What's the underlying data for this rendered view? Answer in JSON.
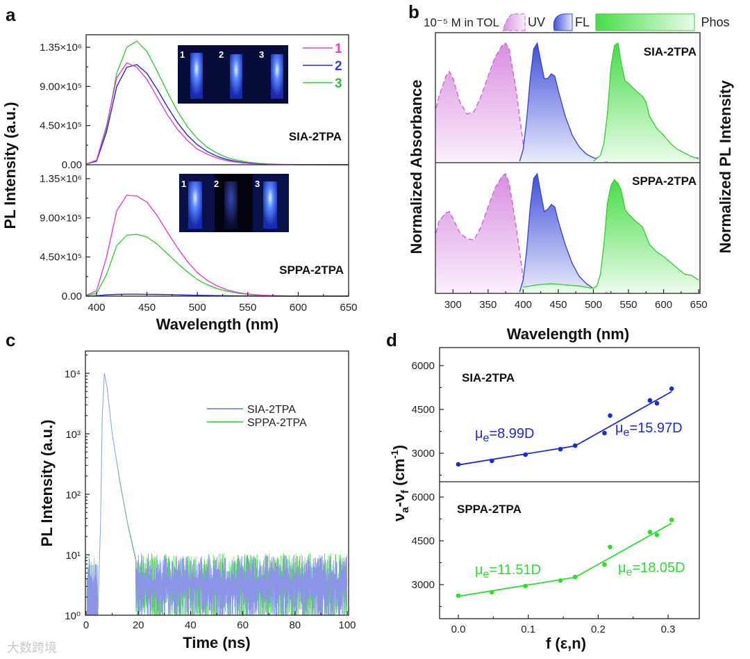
{
  "watermark": "大数跨境",
  "chart_data": [
    {
      "panel": "a",
      "type": "line",
      "xlabel": "Wavelength (nm)",
      "ylabel": "PL Intensity (a.u.)",
      "xlim": [
        390,
        650
      ],
      "ylim_x1e6": [
        0,
        1.5
      ],
      "x_ticks": [
        "400",
        "450",
        "500",
        "550",
        "600",
        "650"
      ],
      "y_ticks": [
        "0.00",
        "4.50×10⁵",
        "9.00×10⁵",
        "1.35×10⁶"
      ],
      "y_tick_values_x1e6": [
        0,
        0.45,
        0.9,
        1.35
      ],
      "legend": [
        "1",
        "2",
        "3"
      ],
      "colors": {
        "1": "#e040d0",
        "2": "#2828c8",
        "3": "#30d030"
      },
      "x": [
        390,
        400,
        410,
        420,
        430,
        440,
        450,
        460,
        470,
        480,
        490,
        500,
        510,
        520,
        530,
        540,
        550,
        560,
        570,
        580,
        600,
        650
      ],
      "subplots": [
        {
          "title": "SIA-2TPA",
          "inset_labels": [
            "1",
            "2",
            "3"
          ],
          "series": [
            {
              "name": "1",
              "values_x1e6": [
                0.01,
                0.05,
                0.45,
                1.0,
                1.17,
                1.12,
                0.98,
                0.78,
                0.58,
                0.41,
                0.28,
                0.18,
                0.12,
                0.075,
                0.045,
                0.028,
                0.016,
                0.009,
                0.005,
                0.003,
                0.001,
                0
              ]
            },
            {
              "name": "2",
              "values_x1e6": [
                0.01,
                0.04,
                0.38,
                0.9,
                1.12,
                1.15,
                1.05,
                0.87,
                0.67,
                0.49,
                0.34,
                0.23,
                0.15,
                0.095,
                0.058,
                0.035,
                0.02,
                0.011,
                0.006,
                0.003,
                0.001,
                0
              ]
            },
            {
              "name": "3",
              "values_x1e6": [
                0.01,
                0.05,
                0.42,
                1.05,
                1.35,
                1.42,
                1.3,
                1.08,
                0.84,
                0.62,
                0.44,
                0.3,
                0.2,
                0.13,
                0.08,
                0.05,
                0.03,
                0.017,
                0.009,
                0.005,
                0.002,
                0
              ]
            }
          ]
        },
        {
          "title": "SPPA-2TPA",
          "inset_labels": [
            "1",
            "2",
            "3"
          ],
          "series": [
            {
              "name": "1",
              "values_x1e6": [
                0.01,
                0.06,
                0.45,
                0.98,
                1.16,
                1.15,
                1.08,
                0.93,
                0.74,
                0.56,
                0.4,
                0.27,
                0.18,
                0.115,
                0.07,
                0.042,
                0.025,
                0.014,
                0.008,
                0.004,
                0.001,
                0
              ]
            },
            {
              "name": "2",
              "values_x1e6": [
                0,
                0.005,
                0.015,
                0.02,
                0.022,
                0.022,
                0.021,
                0.02,
                0.018,
                0.015,
                0.012,
                0.01,
                0.008,
                0.006,
                0.004,
                0.003,
                0.002,
                0.001,
                0.001,
                0,
                0,
                0
              ]
            },
            {
              "name": "3",
              "values_x1e6": [
                0.01,
                0.03,
                0.25,
                0.58,
                0.7,
                0.71,
                0.68,
                0.6,
                0.49,
                0.38,
                0.28,
                0.19,
                0.13,
                0.085,
                0.055,
                0.034,
                0.02,
                0.012,
                0.007,
                0.004,
                0.001,
                0
              ]
            }
          ]
        }
      ]
    },
    {
      "panel": "b",
      "type": "area",
      "header": "10⁻⁵ M in TOL",
      "legend": [
        "UV",
        "FL",
        "Phos"
      ],
      "colors": {
        "UV": "#d060d8",
        "FL": "#3a48d0",
        "Phos": "#38d038"
      },
      "xlabel": "Wavelength (nm)",
      "ylabel_left": "Normalized Absorbance",
      "ylabel_right": "Normalized PL Intensity",
      "xlim": [
        275,
        650
      ],
      "ylim": [
        0,
        1.05
      ],
      "x_ticks": [
        "300",
        "350",
        "400",
        "450",
        "500",
        "550",
        "600",
        "650"
      ],
      "subplots": [
        {
          "title": "SIA-2TPA",
          "UV": {
            "x": [
              276,
              280,
              290,
              295,
              300,
              310,
              320,
              330,
              340,
              350,
              360,
              370,
              375,
              380,
              390,
              400,
              410,
              450,
              500,
              550,
              600,
              650
            ],
            "y": [
              0.45,
              0.55,
              0.72,
              0.76,
              0.7,
              0.5,
              0.4,
              0.42,
              0.55,
              0.72,
              0.88,
              0.98,
              1.0,
              0.95,
              0.6,
              0.15,
              0.05,
              0.03,
              0.03,
              0.03,
              0.03,
              0.03
            ]
          },
          "FL": {
            "x": [
              395,
              400,
              405,
              410,
              415,
              420,
              425,
              430,
              435,
              440,
              445,
              450,
              460,
              470,
              480,
              490,
              500,
              510,
              520
            ],
            "y": [
              0,
              0.1,
              0.35,
              0.7,
              0.95,
              1.0,
              0.85,
              0.7,
              0.7,
              0.74,
              0.72,
              0.6,
              0.38,
              0.22,
              0.12,
              0.06,
              0.03,
              0.01,
              0
            ]
          },
          "Phos": {
            "x": [
              500,
              510,
              515,
              520,
              525,
              530,
              535,
              540,
              545,
              550,
              560,
              570,
              575,
              580,
              590,
              600,
              610,
              620,
              630,
              640,
              650
            ],
            "y": [
              0,
              0.05,
              0.15,
              0.4,
              0.8,
              0.98,
              1.0,
              0.82,
              0.68,
              0.66,
              0.6,
              0.55,
              0.5,
              0.38,
              0.28,
              0.22,
              0.15,
              0.1,
              0.07,
              0.04,
              0.02
            ]
          }
        },
        {
          "title": "SPPA-2TPA",
          "UV": {
            "x": [
              276,
              280,
              290,
              295,
              300,
              310,
              320,
              330,
              340,
              350,
              360,
              370,
              375,
              380,
              390,
              400,
              410,
              450,
              500,
              550,
              600,
              650
            ],
            "y": [
              0.5,
              0.6,
              0.67,
              0.68,
              0.62,
              0.5,
              0.45,
              0.44,
              0.55,
              0.72,
              0.88,
              0.98,
              1.0,
              0.92,
              0.55,
              0.12,
              0.04,
              0.03,
              0.03,
              0.03,
              0.03,
              0.03
            ]
          },
          "FL": {
            "x": [
              395,
              400,
              405,
              410,
              415,
              420,
              425,
              430,
              435,
              440,
              445,
              450,
              460,
              470,
              480,
              490,
              500,
              510,
              520
            ],
            "y": [
              0,
              0.1,
              0.35,
              0.72,
              0.96,
              1.0,
              0.84,
              0.68,
              0.7,
              0.74,
              0.72,
              0.6,
              0.4,
              0.24,
              0.13,
              0.07,
              0.03,
              0.01,
              0
            ]
          },
          "Phos": {
            "x": [
              400,
              420,
              440,
              460,
              480,
              500,
              505,
              510,
              515,
              520,
              525,
              530,
              535,
              540,
              545,
              550,
              560,
              570,
              580,
              590,
              600,
              610,
              620,
              630,
              640,
              650
            ],
            "y": [
              0.04,
              0.06,
              0.07,
              0.06,
              0.05,
              0.03,
              0.05,
              0.15,
              0.4,
              0.75,
              0.9,
              0.95,
              0.92,
              0.85,
              0.7,
              0.66,
              0.6,
              0.55,
              0.4,
              0.34,
              0.3,
              0.25,
              0.2,
              0.15,
              0.14,
              0.1
            ]
          }
        }
      ]
    },
    {
      "panel": "c",
      "type": "line",
      "xlabel": "Time (ns)",
      "ylabel": "PL Intensity (a.u.)",
      "xlim": [
        0,
        100
      ],
      "ylim_log10": [
        0,
        4.3
      ],
      "x_ticks": [
        "0",
        "20",
        "40",
        "60",
        "80",
        "100"
      ],
      "y_ticks": [
        "10⁰",
        "10¹",
        "10²",
        "10³",
        "10⁴"
      ],
      "colors": {
        "SIA-2TPA": "#8c94e8",
        "SPPA-2TPA": "#50e050"
      },
      "series": [
        {
          "name": "SIA-2TPA",
          "decay": [
            [
              4.5,
              1
            ],
            [
              5.5,
              30
            ],
            [
              6.2,
              2000
            ],
            [
              7,
              10000
            ],
            [
              8,
              6000
            ],
            [
              10,
              1000
            ],
            [
              13,
              150
            ],
            [
              16,
              30
            ],
            [
              19,
              8
            ]
          ],
          "noise_floor": [
            1,
            10
          ]
        },
        {
          "name": "SPPA-2TPA",
          "decay": [
            [
              4.5,
              1
            ],
            [
              5.5,
              30
            ],
            [
              6.2,
              2000
            ],
            [
              7,
              10000
            ],
            [
              8,
              6000
            ],
            [
              10,
              1000
            ],
            [
              13,
              160
            ],
            [
              16,
              32
            ],
            [
              19,
              9
            ]
          ],
          "noise_floor": [
            1,
            12
          ]
        }
      ]
    },
    {
      "panel": "d",
      "type": "scatter",
      "xlabel": "f (ε,n)",
      "ylabel": {
        "nu1": "ν",
        "sub1": "a",
        "nu2": "-ν",
        "sub2": "f",
        "unit": " (cm",
        "sup": "-1",
        "close": ")"
      },
      "xlim": [
        -0.02,
        0.345
      ],
      "x_ticks": [
        "0.0",
        "0.1",
        "0.2",
        "0.3"
      ],
      "y_ticks": [
        "3000",
        "4500",
        "6000"
      ],
      "subplots": [
        {
          "title": "SIA-2TPA",
          "color": "#1a2ad8",
          "f": [
            0.0,
            0.048,
            0.096,
            0.146,
            0.167,
            0.209,
            0.217,
            0.274,
            0.284,
            0.305
          ],
          "stokes_shift": [
            2620,
            2740,
            2950,
            3140,
            3260,
            3690,
            4290,
            4810,
            4710,
            5210
          ],
          "fits": [
            {
              "range": [
                0,
                0.167
              ],
              "y": [
                2600,
                3250
              ],
              "mu": "μ",
              "sub": "e",
              "label": "=8.99D"
            },
            {
              "range": [
                0.167,
                0.305
              ],
              "y": [
                3250,
                5110
              ],
              "mu": "μ",
              "sub": "e",
              "label": "=15.97D"
            }
          ]
        },
        {
          "title": "SPPA-2TPA",
          "color": "#28e028",
          "f": [
            0.0,
            0.048,
            0.096,
            0.146,
            0.167,
            0.209,
            0.217,
            0.274,
            0.284,
            0.305
          ],
          "stokes_shift": [
            2620,
            2740,
            2950,
            3140,
            3260,
            3690,
            4290,
            4800,
            4700,
            5220
          ],
          "fits": [
            {
              "range": [
                0,
                0.167
              ],
              "y": [
                2600,
                3250
              ],
              "mu": "μ",
              "sub": "e",
              "label": "=11.51D"
            },
            {
              "range": [
                0.167,
                0.305
              ],
              "y": [
                3250,
                5100
              ],
              "mu": "μ",
              "sub": "e",
              "label": "=18.05D"
            }
          ]
        }
      ]
    }
  ]
}
